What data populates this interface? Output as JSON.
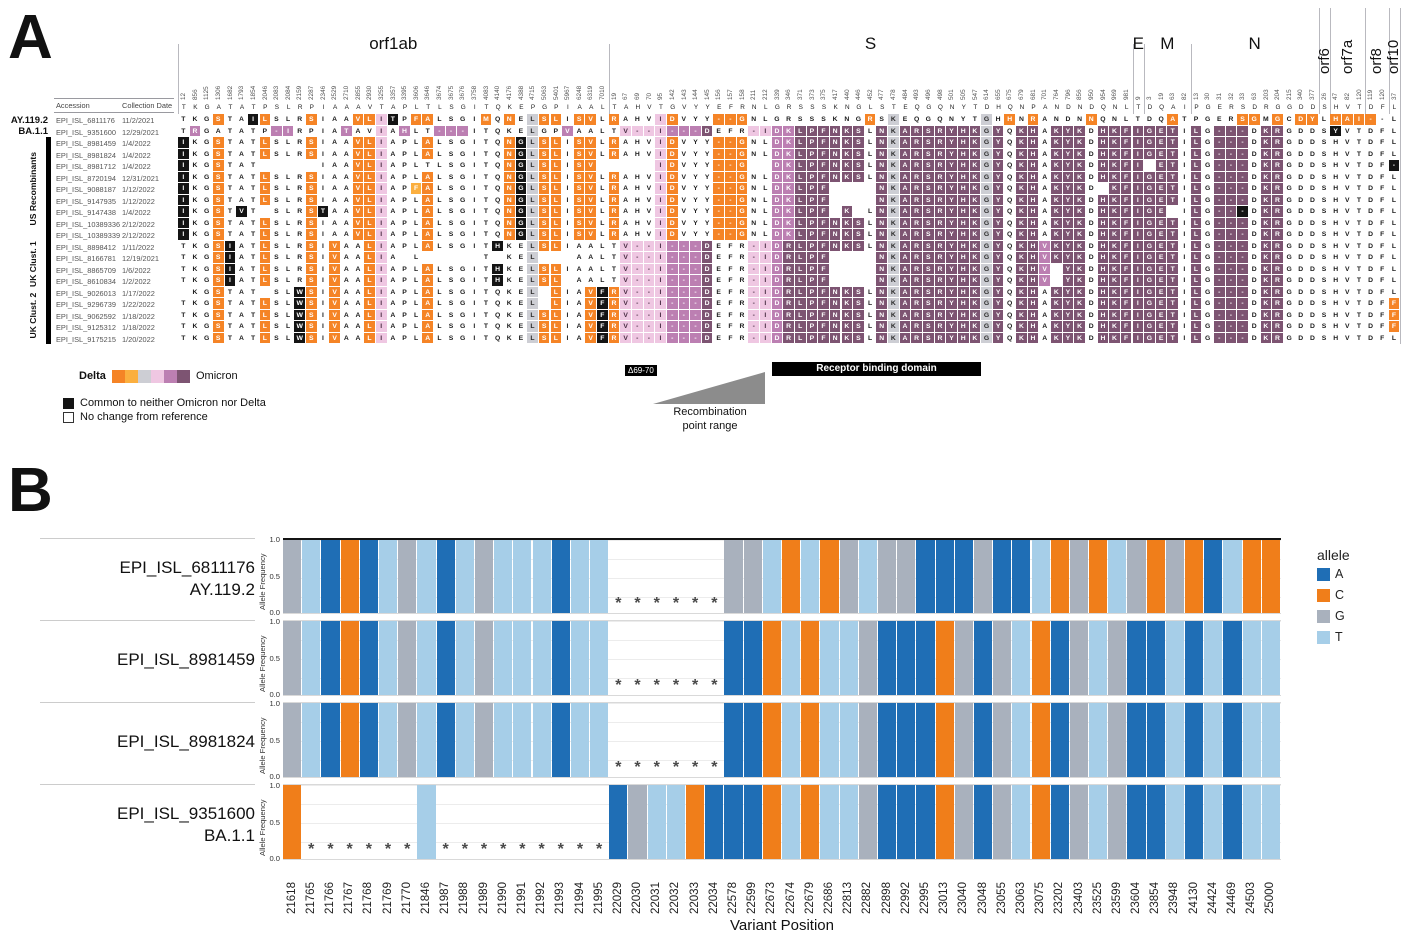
{
  "panelA": {
    "panel_label": "A",
    "col_headers": {
      "accession": "Accession",
      "date": "Collection Date"
    },
    "groups": [
      {
        "label": "US Recombinants",
        "start": 2,
        "end": 10
      },
      {
        "label": "UK Clust. 1",
        "start": 11,
        "end": 14
      },
      {
        "label": "UK Clust. 2",
        "start": 15,
        "end": 19
      }
    ],
    "legend": {
      "delta_label": "Delta",
      "omicron_label": "Omicron",
      "gradient": [
        "#F58426",
        "#FBAF3F",
        "#CDCED4",
        "#EFC7E2",
        "#BC7FB2",
        "#7D5472"
      ],
      "black_label": "Common to neither Omicron nor Delta",
      "white_label": "No change from reference"
    },
    "annotations": {
      "del_badge": "Δ69-70",
      "recomb_line1": "Recombination",
      "recomb_line2": "point range",
      "rbd_label": "Receptor binding domain"
    },
    "palette": {
      ".": "#FFFFFF",
      "O": "#F58426",
      "o": "#FBAF3F",
      "G": "#CDCED4",
      "k": "#EFC7E2",
      "p": "#BC7FB2",
      "P": "#7D5472",
      "B": "#141414",
      "E": ""
    },
    "text_palette": {
      ".": "#1a1a1a",
      "G": "#2a2a2a",
      "k": "#4a2d44",
      "o": "#ffffff",
      "O": "#ffffff",
      "p": "#ffffff",
      "P": "#ffffff",
      "B": "#ffffff",
      "E": "transparent"
    }
  },
  "panelB": {
    "panel_label": "B",
    "ylabel": "Allele Frequency",
    "yticks": [
      "1.0",
      "0.5",
      "0.0"
    ],
    "xlabel": "Variant Position",
    "legend_title": "allele"
  },
  "chart_data": [
    {
      "type": "heatmap",
      "id": "alignment",
      "genes": [
        {
          "name": "orf1ab",
          "rotated": false,
          "ref": "TKGATATPSLRPIAAAVTAPLTLSGITQKEPGPIAAL",
          "positions": [
            "12",
            "856",
            "1125",
            "1306",
            "1682",
            "1793",
            "1854",
            "2046",
            "2083",
            "2084",
            "2159",
            "2287",
            "2346",
            "2529",
            "2710",
            "2855",
            "2930",
            "3255",
            "3357",
            "3395",
            "3606",
            "3646",
            "3674",
            "3675",
            "3676",
            "3758",
            "4083",
            "4140",
            "4176",
            "4388",
            "4715",
            "5063",
            "5401",
            "5967",
            "6248",
            "6319",
            "7010"
          ]
        },
        {
          "name": "S",
          "rotated": false,
          "ref": "TAHVTGVYYEFRNLGRSSSKNGLSTEQGQNYTDHQNPANDNDQNL",
          "positions": [
            "19",
            "67",
            "69",
            "70",
            "95",
            "142",
            "143",
            "144",
            "145",
            "156",
            "157",
            "158",
            "211",
            "212",
            "339",
            "346",
            "371",
            "373",
            "375",
            "417",
            "440",
            "446",
            "452",
            "477",
            "478",
            "484",
            "493",
            "496",
            "498",
            "501",
            "505",
            "547",
            "614",
            "655",
            "675",
            "679",
            "681",
            "701",
            "764",
            "796",
            "856",
            "950",
            "954",
            "969",
            "981"
          ]
        },
        {
          "name": "E",
          "rotated": false,
          "ref": "T",
          "positions": [
            "9"
          ]
        },
        {
          "name": "M",
          "rotated": false,
          "ref": "DQAI",
          "positions": [
            "3",
            "19",
            "63",
            "82"
          ]
        },
        {
          "name": "N",
          "rotated": false,
          "ref": "PGERSDRGGDD",
          "positions": [
            "13",
            "30",
            "31",
            "32",
            "33",
            "63",
            "203",
            "204",
            "215",
            "340",
            "377"
          ]
        },
        {
          "name": "orf6",
          "rotated": true,
          "ref": "S",
          "positions": [
            "26"
          ]
        },
        {
          "name": "orf7a",
          "rotated": true,
          "ref": "HVT",
          "positions": [
            "47",
            "82",
            "120"
          ]
        },
        {
          "name": "orf8",
          "rotated": true,
          "ref": "DF",
          "positions": [
            "119",
            "120"
          ]
        },
        {
          "name": "orf10",
          "rotated": true,
          "ref": "L",
          "positions": [
            "37"
          ]
        }
      ],
      "rows": [
        {
          "lineage": "AY.119.2",
          "accession": "EPI_ISL_6811176",
          "date": "11/2/2021",
          "seq": "TKGSTAILSLRSIAAVLITPFALSGIMQNELSLISVLRAHVIDVYY--GNLGRSSSKNGRSKEQGQNYTGHHNRANDNNQNLTDQATPGERSGMGCDYLHAI--L",
          "colors": "...O..BO...O...OOkB.OO....O.O.GOO.OO.O...kO...OOO..........O.G.......G.O.O....O......O.....OO.O.OO.OOOO."
        },
        {
          "lineage": "BA.1.1",
          "accession": "EPI_ISL_9351600",
          "date": "12/29/2021",
          "seq": "TRGATATP-IRPIATAVIAHLT---ITQKELGPVAALTV--I---DEFR-IDKLPFNKSLNKARSRYHKGYQKHAKYKDHKFIGETILG---DKRGDDSYVTDFL",
          "colors": ".p......pp....p..k.p..ppp.....G..p....kkkkpppP...kkppPPPPPP.PGPPPPPPPGP.PP.PPP.PPPPPPP.P.PPP.PP....B....."
        },
        {
          "lineage": "",
          "accession": "EPI_ISL_8981459",
          "date": "1/4/2022",
          "seq": "IKGSTATLSLRSIAAVLIAPLALSGITQNGLSLISVLRAHVIDVYY--GNLDKLPFNKSLNKARSRYHKGYQKHAKYKDHKFIGETILG---DKRGDDSHVTDFL",
          "colors": "B..O...O...O...OOk...O......OBGOO.OO.O...kO...OOO..ppPPPPPP.PGPPPPPPPGP.PP.PPP.PPPPPPP.P.PPP.PP.........."
        },
        {
          "lineage": "",
          "accession": "EPI_ISL_8981824",
          "date": "1/4/2022",
          "seq": "IKGSTATLSLRSIAAVLIAPLALSGITQNGLSLISVLRAHVIDVYY--GNLDKLPFNKSLNKARSRYHKGYQKHAKYKDHKFIGETILG---DKRGDDSHVTDFL",
          "colors": "B..O...O...O...OOk...O......OBGOO.OO.O...kO...OOO..ppPPPPPP.PGPPPPPPPGP.PP.PPP.PPPPPPP.P.PPP.PP.........."
        },
        {
          "lineage": "",
          "accession": "EPI_ISL_8981712",
          "date": "1/4/2022",
          "seq": "IKGSTAT     IAAVLIAPLTLSGITQNGLSLISV     IDVYY--G  DKLPFNKSLNKARSRYHKGYQKHAKYKDHKFI ETILG---DKRGDDSHVTDF-",
          "colors": "B..O...EEEEE...OOk..........OBGOO.OOEEEEEkO...OOOEEppPPPPPP.PGPPPPPPPGP.PP.PPP.PPPPEPP.P.PPP.PP.........B"
        },
        {
          "lineage": "",
          "accession": "EPI_ISL_8720194",
          "date": "12/31/2021",
          "seq": "IKGSTATLSLRSIAAVLIAPLALSGITQNGLSLISVLRAHVIDVYY--GNLDKLPFNKSLNKARSRYHKGYQKHAKYKDHKFIGETILG---DKRGDDSHVTDFL",
          "colors": "B..O...O...O...OOk...O......OBGOO.OO.O...kO...OOO..ppPPPPPP.PGPPPPPPPGP.PP.PPP.PPPPPPP.P.PPP.PP.........."
        },
        {
          "lineage": "",
          "accession": "EPI_ISL_9088187",
          "date": "1/12/2022",
          "seq": "IKGSTATLSLRSIAAVLIAPFALSGITQNGLSLISVLRAHVIDVYY--GNLDKLPF    NKARSRYHKGYQKHAKYKD KFIGETILG---DKRGDDSHVTDFL",
          "colors": "B..O...O...O...OOk..oO......OBGOO.OO.O...kO...OOO..ppPPPEEEEPGPPPPPPPGP.PP.PPP.EPPPPPP.P.PPP.PP.........."
        },
        {
          "lineage": "",
          "accession": "EPI_ISL_9147935",
          "date": "1/12/2022",
          "seq": "IKGSTATLSLRSIAAVLIAPLALSGITQNGLSLISVLRAHVIDVYY--GNLDKLPF    NKARSRYHKGYQKHAKYKDHKFIGETILG---DKRGDDSHVTDFL",
          "colors": "B..O...O...O...OOk...O......OBGOO.OO.O...kO...OOO..ppPPPEEEEPGPPPPPPPGP.PP.PPP.PPPPPPP.P.PPP.PP.........."
        },
        {
          "lineage": "",
          "accession": "EPI_ISL_9147438",
          "date": "1/4/2022",
          "seq": "IKGSTVT SLRSTAAVLIAPLALSGITQNGLSLISVLRAHVIDVYY--GNLDKLPF K LNKARSRYHKGYQKHAKYKDHKFIGE ILG---DKRGDDSHVTDFL",
          "colors": "B..O.B.E...OB..OOk...O......OBGOO.OO.O...kO...OOO..ppPPPEPE.PGPPPPPPPGP.PP.PPP.PPPPPPE.P.PPB.PP.........."
        },
        {
          "lineage": "",
          "accession": "EPI_ISL_10389336",
          "date": "2/12/2022",
          "seq": "IKGSTATLSLRSIAAVLIAPLALSGITQNGLSLISVLRAHVIDVYY--GNLDKLPFNKSLNKARSRYHKGYQKHAKYKDHKFIGETILG---DKRGDDSHVTDFL",
          "colors": "B..O...O...O...OOk...O......OBGOO.OO.O...kO...OOO..ppPPPPPP.PGPPPPPPPGP.PP.PPP.PPPPPPP.P.PPP.PP.........."
        },
        {
          "lineage": "",
          "accession": "EPI_ISL_10389339",
          "date": "2/12/2022",
          "seq": "IKGSTATLSLRSIAAVLIAPLALSGITQNGLSLISVLRAHVIDVYY--GNLDKLPFNKSLNKARSRYHKGYQKHAKYKDHKFIGETILG---DKRGDDSHVTDFL",
          "colors": "B..O...O...O...OOk...O......OBGOO.OO.O...kO...OOO..ppPPPPPP.PGPPPPPPPGP.PP.PPP.PPPPPPP.P.PPP.PP.........."
        },
        {
          "lineage": "",
          "accession": "EPI_ISL_8898412",
          "date": "1/11/2022",
          "seq": "TKGSIATLSLRSIVAALIAPLALSGITHKELSLIAALTV--I---DEFR-IDRLPFNKSLNKARSRYHKGYQKHVKYKDHKFIGETILG---DKRGDDSHVTDFL",
          "colors": "...OB..O...O.O..Ok...O.....B..GOO.....kkkkpppP...kkpPPPPPPP.PGPPPPPPPGP.PPpPPP.PPPPPPP.P.PPP.PP.........."
        },
        {
          "lineage": "",
          "accession": "EPI_ISL_8166781",
          "date": "12/19/2021",
          "seq": "TKGSIATLSLRSIVAALIA L     T KEL   AALTV--I---DEFR-IDRLPF    NKARSRYHKGYQKHVKYKDHKFIGETILG---DKRGDDSHVTDFL",
          "colors": "...OB..O...O.O..Ok.E.EEEEE.E..GEEE....kkkkpppP...kkpPPPPEEEEPGPPPPPPPGP.PPpPPP.PPPPPPP.P.PPP.PP.........."
        },
        {
          "lineage": "",
          "accession": "EPI_ISL_8865709",
          "date": "1/6/2022",
          "seq": "TKGSIATLSLRSIVAALIAPLALSGITHKELSLIAALTV--I---DEFR-IDRLPF    NKARSRYHKGYQKHV YKDHKFIGETILG---DKRGDDSHVTDFL",
          "colors": "...OB..O...O.O..Ok...O.....B..GOO.....kkkkpppP...kkpPPPPEEEEPGPPPPPPPGP.PPpEPP.PPPPPPP.P.PPP.PP.........."
        },
        {
          "lineage": "",
          "accession": "EPI_ISL_8610834",
          "date": "1/2/2022",
          "seq": "TKGSIATLSLRSIVAALIAPLALSGITHKELSL AALTV--I---DEFR-IDRLPF    NKARSRYHKGYQKHV YKDHKFIGETILG---DKRGDDSHVTDFL",
          "colors": "...OB..O...O.O..Ok...O.....B..GOOE....kkkkpppP...kkpPPPPEEEEPGPPPPPPPGP.PPpEPP.PPPPPPP.P.PPP.PP.........."
        },
        {
          "lineage": "",
          "accession": "EPI_ISL_9026013",
          "date": "1/17/2022",
          "seq": " KGSTAT SLWSIVAALIAPLALSGITQKEL LIAVFRV--I---DEFR-IDRLPFNKSLNKARSRYHKGYQKHAKYKDHKFIGETILG---DKRGDDSHVTDFL",
          "colors": "E..O...E..BO.O..Ok...O........GEO..OBOkkkkpppP...kkpPPPPPPP.PGPPPPPPPGP.PP.PPP.PPPPPPP.P.PPP.PP.........."
        },
        {
          "lineage": "",
          "accession": "EPI_ISL_9296739",
          "date": "1/22/2022",
          "seq": "TKGSTATLSLWSIVAALIAPLALSGITQKEL LIAVFRV--I---DEFR-IDRLPFNKSLNKARSRYHKGYQKHAKYKDHKFIGETILG---DKRGDDSHVTDFF",
          "colors": "...O...O..BO.O..Ok...O........GEO..OBOkkkkpppP...kkpPPPPPPP.PGPPPPPPPGP.PP.PPP.PPPPPPP.P.PPP.PP.........O"
        },
        {
          "lineage": "",
          "accession": "EPI_ISL_9062592",
          "date": "1/18/2022",
          "seq": "TKGSTATLSLWSIVAALIAPLALSGITQKELSLIAVFRV--I---DEFR-IDRLPFNKSLNKARSRYHKGYQKHAKYKDHKFIGETILG---DKRGDDSHVTDFF",
          "colors": "...O...O..BO.O..Ok...O........GOO..OBOkkkkpppP...kkpPPPPPPP.PGPPPPPPPGP.PP.PPP.PPPPPPP.P.PPP.PP.........O"
        },
        {
          "lineage": "",
          "accession": "EPI_ISL_9125312",
          "date": "1/18/2022",
          "seq": "TKGSTATLSLWSIVAALIAPLALSGITQKELSLIAVFRV--I---DEFR-IDRLPFNKSLNKARSRYHKGYQKHAKYKDHKFIGETILG---DKRGDDSHVTDFF",
          "colors": "...O...O..BO.O..Ok...O........GOO..OBOkkkkpppP...kkpPPPPPPP.PGPPPPPPPGP.PP.PPP.PPPPPPP.P.PPP.PP.........O"
        },
        {
          "lineage": "",
          "accession": "EPI_ISL_9175215",
          "date": "1/20/2022",
          "seq": "TKGSTATLSLWSIVAALIAPLALSGITQKELSLIAVFRV--I---DEFR-IDRLPFNKSLNKARSRYHKGYQKHAKYKDHKFIGETILG---DKRGDDSHVTDFL",
          "colors": "...O...O..BO.O..Ok...O........GOO..OBOkkkkpppP...kkpPPPPPPP.PGPPPPPPPGP.PP.PPP.PPPPPPP.P.PPP.PP.........."
        }
      ]
    },
    {
      "type": "bar",
      "id": "allele_freq",
      "stacked": true,
      "xlabel": "Variant Position",
      "ylabel": "Allele Frequency",
      "ylim": [
        0,
        1
      ],
      "x": [
        21618,
        21765,
        21766,
        21767,
        21768,
        21769,
        21770,
        21846,
        21987,
        21988,
        21989,
        21990,
        21991,
        21992,
        21993,
        21994,
        21995,
        22029,
        22030,
        22031,
        22032,
        22033,
        22034,
        22578,
        22599,
        22673,
        22674,
        22679,
        22686,
        22813,
        22882,
        22898,
        22992,
        22995,
        23013,
        23040,
        23048,
        23055,
        23063,
        23075,
        23202,
        23403,
        23525,
        23599,
        23604,
        23854,
        23948,
        24130,
        24424,
        24469,
        24503,
        25000
      ],
      "allele_colors": {
        "A": "#1F6EB5",
        "C": "#F07E1A",
        "G": "#A9B1BD",
        "T": "#A6CEE8"
      },
      "asterisk_meaning": "position deleted / no allele called",
      "series": [
        {
          "label1": "EPI_ISL_6811176",
          "label2": "AY.119.2",
          "alleles": "GTACATGTATGTTTATT******GGTCTCGTGGAAAGAATCGCTGCGCATCC"
        },
        {
          "label1": "EPI_ISL_8981459",
          "label2": "",
          "alleles": "GTACATGTATGTTTATT******AACTCTTGAAACGAGTCAGTGAATATATT"
        },
        {
          "label1": "EPI_ISL_8981824",
          "label2": "",
          "alleles": "GTACATGTATGTTTATT******AACTCTTGAAACGAGTCAGTGAATATATT"
        },
        {
          "label1": "EPI_ISL_9351600",
          "label2": "BA.1.1",
          "alleles": "C******T*********AGTTCAAACTCTTGAAACGAGTCAGTGAATATATT"
        }
      ]
    }
  ]
}
